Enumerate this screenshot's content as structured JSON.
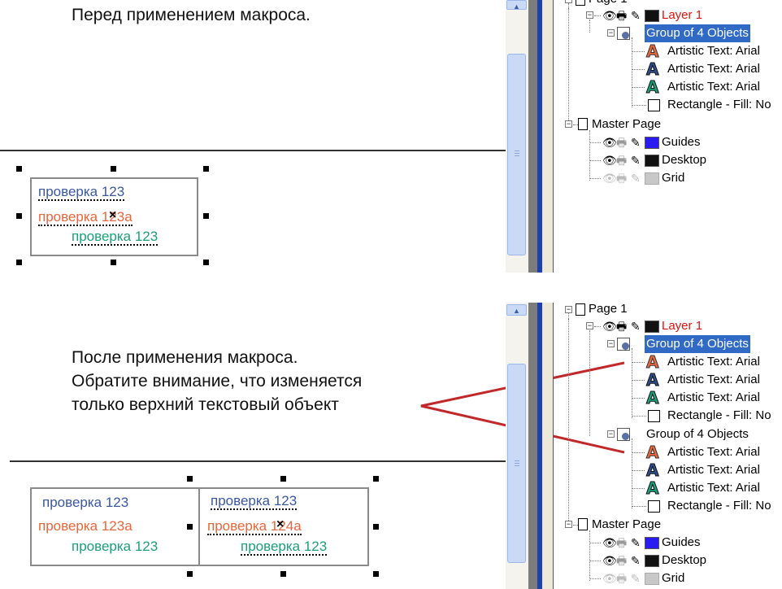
{
  "before": {
    "caption": "Перед применением макроса.",
    "group": {
      "text1": "проверка 123",
      "text2": "проверка 123a",
      "text3": "проверка 123"
    },
    "tree": {
      "page": "Page 1",
      "layer": "Layer 1",
      "group": "Group of 4 Objects",
      "items": [
        "Artistic Text: Arial",
        "Artistic Text: Arial",
        "Artistic Text: Arial",
        "Rectangle - Fill: No"
      ],
      "master": "Master Page",
      "master_items": [
        "Guides",
        "Desktop",
        "Grid"
      ]
    }
  },
  "after": {
    "caption_lines": [
      "После применения макроса.",
      "Обратите внимание, что изменяется",
      "только верхний текстовый объект"
    ],
    "group_left": {
      "text1": "проверка 123",
      "text2": "проверка 123a",
      "text3": "проверка 123"
    },
    "group_right": {
      "text1": "проверка 123",
      "text2": "проверка 124a",
      "text3": "проверка 123"
    },
    "tree": {
      "page": "Page 1",
      "layer": "Layer 1",
      "group1": "Group of 4 Objects",
      "group1_items": [
        "Artistic Text: Arial",
        "Artistic Text: Arial",
        "Artistic Text: Arial",
        "Rectangle - Fill: No"
      ],
      "group2": "Group of 4 Objects",
      "group2_items": [
        "Artistic Text: Arial",
        "Artistic Text: Arial",
        "Artistic Text: Arial",
        "Rectangle - Fill: No"
      ],
      "master": "Master Page",
      "master_items": [
        "Guides",
        "Desktop",
        "Grid"
      ]
    }
  },
  "colors": {
    "text_blue": "#3a57a4",
    "text_orange": "#e8663a",
    "text_green": "#1aa078",
    "selection": "#316ac5",
    "layer_red": "#e01010",
    "guides_swatch": "#2a1cf0",
    "desktop_swatch": "#111111",
    "grid_swatch": "#c8c8c8",
    "arrow": "#c0282a"
  },
  "icons": [
    "eye-icon",
    "printer-icon",
    "pencil-icon",
    "color-swatch",
    "artistic-text-icon",
    "rectangle-icon",
    "page-icon",
    "group-icon"
  ]
}
